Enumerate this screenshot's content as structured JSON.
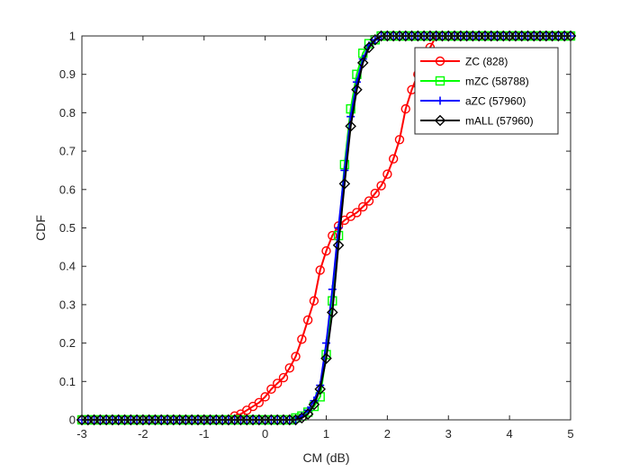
{
  "chart_data": {
    "type": "line",
    "title": "",
    "xlabel": "CM (dB)",
    "ylabel": "CDF",
    "xlim": [
      -3,
      5
    ],
    "ylim": [
      0,
      1
    ],
    "xticks": [
      -3,
      -2,
      -1,
      0,
      1,
      2,
      3,
      4,
      5
    ],
    "yticks": [
      0,
      0.1,
      0.2,
      0.3,
      0.4,
      0.5,
      0.6,
      0.7,
      0.8,
      0.9,
      1
    ],
    "xtick_labels": [
      "-3",
      "-2",
      "-1",
      "0",
      "1",
      "2",
      "3",
      "4",
      "5"
    ],
    "ytick_labels": [
      "0",
      "0.1",
      "0.2",
      "0.3",
      "0.4",
      "0.5",
      "0.6",
      "0.7",
      "0.8",
      "0.9",
      "1"
    ],
    "grid": false,
    "legend_position": "top-right",
    "series": [
      {
        "name": "ZC (828)",
        "color": "#ff0000",
        "marker": "circle",
        "x": [
          -3.0,
          -2.9,
          -2.8,
          -2.7,
          -2.6,
          -2.5,
          -2.4,
          -2.3,
          -2.2,
          -2.1,
          -2.0,
          -1.9,
          -1.8,
          -1.7,
          -1.6,
          -1.5,
          -1.4,
          -1.3,
          -1.2,
          -1.1,
          -1.0,
          -0.9,
          -0.8,
          -0.7,
          -0.6,
          -0.5,
          -0.4,
          -0.3,
          -0.2,
          -0.1,
          0.0,
          0.1,
          0.2,
          0.3,
          0.4,
          0.5,
          0.6,
          0.7,
          0.8,
          0.9,
          1.0,
          1.1,
          1.2,
          1.3,
          1.4,
          1.5,
          1.6,
          1.7,
          1.8,
          1.9,
          2.0,
          2.1,
          2.2,
          2.3,
          2.4,
          2.5,
          2.6,
          2.7,
          2.8,
          2.9,
          3.0,
          3.1,
          3.2,
          3.3,
          3.4,
          3.5,
          3.6,
          3.7,
          3.8,
          3.9,
          4.0,
          4.1,
          4.2,
          4.3,
          4.4,
          4.5,
          4.6,
          4.7,
          4.8,
          4.9,
          5.0
        ],
        "y": [
          0,
          0,
          0,
          0,
          0,
          0,
          0,
          0,
          0,
          0,
          0,
          0,
          0,
          0,
          0,
          0,
          0,
          0,
          0,
          0,
          0,
          0,
          0,
          0,
          0,
          0.01,
          0.015,
          0.025,
          0.035,
          0.045,
          0.06,
          0.08,
          0.095,
          0.11,
          0.135,
          0.165,
          0.21,
          0.26,
          0.31,
          0.39,
          0.44,
          0.48,
          0.505,
          0.52,
          0.53,
          0.54,
          0.555,
          0.57,
          0.59,
          0.61,
          0.64,
          0.68,
          0.73,
          0.81,
          0.86,
          0.9,
          0.93,
          0.97,
          1,
          1,
          1,
          1,
          1,
          1,
          1,
          1,
          1,
          1,
          1,
          1,
          1,
          1,
          1,
          1,
          1,
          1,
          1,
          1,
          1,
          1,
          1
        ]
      },
      {
        "name": "mZC (58788)",
        "color": "#00ff00",
        "marker": "square",
        "x": [
          -3.0,
          -2.9,
          -2.8,
          -2.7,
          -2.6,
          -2.5,
          -2.4,
          -2.3,
          -2.2,
          -2.1,
          -2.0,
          -1.9,
          -1.8,
          -1.7,
          -1.6,
          -1.5,
          -1.4,
          -1.3,
          -1.2,
          -1.1,
          -1.0,
          -0.9,
          -0.8,
          -0.7,
          -0.6,
          -0.5,
          -0.4,
          -0.3,
          -0.2,
          -0.1,
          0.0,
          0.1,
          0.2,
          0.3,
          0.4,
          0.5,
          0.6,
          0.7,
          0.8,
          0.9,
          1.0,
          1.1,
          1.2,
          1.3,
          1.4,
          1.5,
          1.6,
          1.7,
          1.8,
          1.9,
          2.0,
          2.1,
          2.2,
          2.3,
          2.4,
          2.5,
          2.6,
          2.7,
          2.8,
          2.9,
          3.0,
          3.1,
          3.2,
          3.3,
          3.4,
          3.5,
          3.6,
          3.7,
          3.8,
          3.9,
          4.0,
          4.1,
          4.2,
          4.3,
          4.4,
          4.5,
          4.6,
          4.7,
          4.8,
          4.9,
          5.0
        ],
        "y": [
          0,
          0,
          0,
          0,
          0,
          0,
          0,
          0,
          0,
          0,
          0,
          0,
          0,
          0,
          0,
          0,
          0,
          0,
          0,
          0,
          0,
          0,
          0,
          0,
          0,
          0,
          0,
          0,
          0,
          0,
          0,
          0,
          0,
          0,
          0,
          0.005,
          0.01,
          0.02,
          0.035,
          0.06,
          0.17,
          0.31,
          0.48,
          0.665,
          0.81,
          0.9,
          0.955,
          0.98,
          0.99,
          1,
          1,
          1,
          1,
          1,
          1,
          1,
          1,
          1,
          1,
          1,
          1,
          1,
          1,
          1,
          1,
          1,
          1,
          1,
          1,
          1,
          1,
          1,
          1,
          1,
          1,
          1,
          1,
          1,
          1,
          1,
          1
        ]
      },
      {
        "name": "aZC (57960)",
        "color": "#0000ff",
        "marker": "plus",
        "x": [
          -3.0,
          -2.9,
          -2.8,
          -2.7,
          -2.6,
          -2.5,
          -2.4,
          -2.3,
          -2.2,
          -2.1,
          -2.0,
          -1.9,
          -1.8,
          -1.7,
          -1.6,
          -1.5,
          -1.4,
          -1.3,
          -1.2,
          -1.1,
          -1.0,
          -0.9,
          -0.8,
          -0.7,
          -0.6,
          -0.5,
          -0.4,
          -0.3,
          -0.2,
          -0.1,
          0.0,
          0.1,
          0.2,
          0.3,
          0.4,
          0.5,
          0.6,
          0.7,
          0.8,
          0.9,
          1.0,
          1.1,
          1.2,
          1.3,
          1.4,
          1.5,
          1.6,
          1.7,
          1.8,
          1.9,
          2.0,
          2.1,
          2.2,
          2.3,
          2.4,
          2.5,
          2.6,
          2.7,
          2.8,
          2.9,
          3.0,
          3.1,
          3.2,
          3.3,
          3.4,
          3.5,
          3.6,
          3.7,
          3.8,
          3.9,
          4.0,
          4.1,
          4.2,
          4.3,
          4.4,
          4.5,
          4.6,
          4.7,
          4.8,
          4.9,
          5.0
        ],
        "y": [
          0,
          0,
          0,
          0,
          0,
          0,
          0,
          0,
          0,
          0,
          0,
          0,
          0,
          0,
          0,
          0,
          0,
          0,
          0,
          0,
          0,
          0,
          0,
          0,
          0,
          0,
          0,
          0,
          0,
          0,
          0,
          0,
          0,
          0,
          0,
          0,
          0.01,
          0.025,
          0.05,
          0.09,
          0.2,
          0.34,
          0.5,
          0.65,
          0.79,
          0.88,
          0.94,
          0.975,
          0.99,
          1,
          1,
          1,
          1,
          1,
          1,
          1,
          1,
          1,
          1,
          1,
          1,
          1,
          1,
          1,
          1,
          1,
          1,
          1,
          1,
          1,
          1,
          1,
          1,
          1,
          1,
          1,
          1,
          1,
          1,
          1,
          1
        ]
      },
      {
        "name": "mALL (57960)",
        "color": "#000000",
        "marker": "diamond",
        "x": [
          -3.0,
          -2.9,
          -2.8,
          -2.7,
          -2.6,
          -2.5,
          -2.4,
          -2.3,
          -2.2,
          -2.1,
          -2.0,
          -1.9,
          -1.8,
          -1.7,
          -1.6,
          -1.5,
          -1.4,
          -1.3,
          -1.2,
          -1.1,
          -1.0,
          -0.9,
          -0.8,
          -0.7,
          -0.6,
          -0.5,
          -0.4,
          -0.3,
          -0.2,
          -0.1,
          0.0,
          0.1,
          0.2,
          0.3,
          0.4,
          0.5,
          0.6,
          0.7,
          0.8,
          0.9,
          1.0,
          1.1,
          1.2,
          1.3,
          1.4,
          1.5,
          1.6,
          1.7,
          1.8,
          1.9,
          2.0,
          2.1,
          2.2,
          2.3,
          2.4,
          2.5,
          2.6,
          2.7,
          2.8,
          2.9,
          3.0,
          3.1,
          3.2,
          3.3,
          3.4,
          3.5,
          3.6,
          3.7,
          3.8,
          3.9,
          4.0,
          4.1,
          4.2,
          4.3,
          4.4,
          4.5,
          4.6,
          4.7,
          4.8,
          4.9,
          5.0
        ],
        "y": [
          0,
          0,
          0,
          0,
          0,
          0,
          0,
          0,
          0,
          0,
          0,
          0,
          0,
          0,
          0,
          0,
          0,
          0,
          0,
          0,
          0,
          0,
          0,
          0,
          0,
          0,
          0,
          0,
          0,
          0,
          0,
          0,
          0,
          0,
          0,
          0,
          0.005,
          0.015,
          0.04,
          0.08,
          0.16,
          0.28,
          0.455,
          0.615,
          0.765,
          0.86,
          0.93,
          0.97,
          0.99,
          1,
          1,
          1,
          1,
          1,
          1,
          1,
          1,
          1,
          1,
          1,
          1,
          1,
          1,
          1,
          1,
          1,
          1,
          1,
          1,
          1,
          1,
          1,
          1,
          1,
          1,
          1,
          1,
          1,
          1,
          1,
          1
        ]
      }
    ]
  }
}
